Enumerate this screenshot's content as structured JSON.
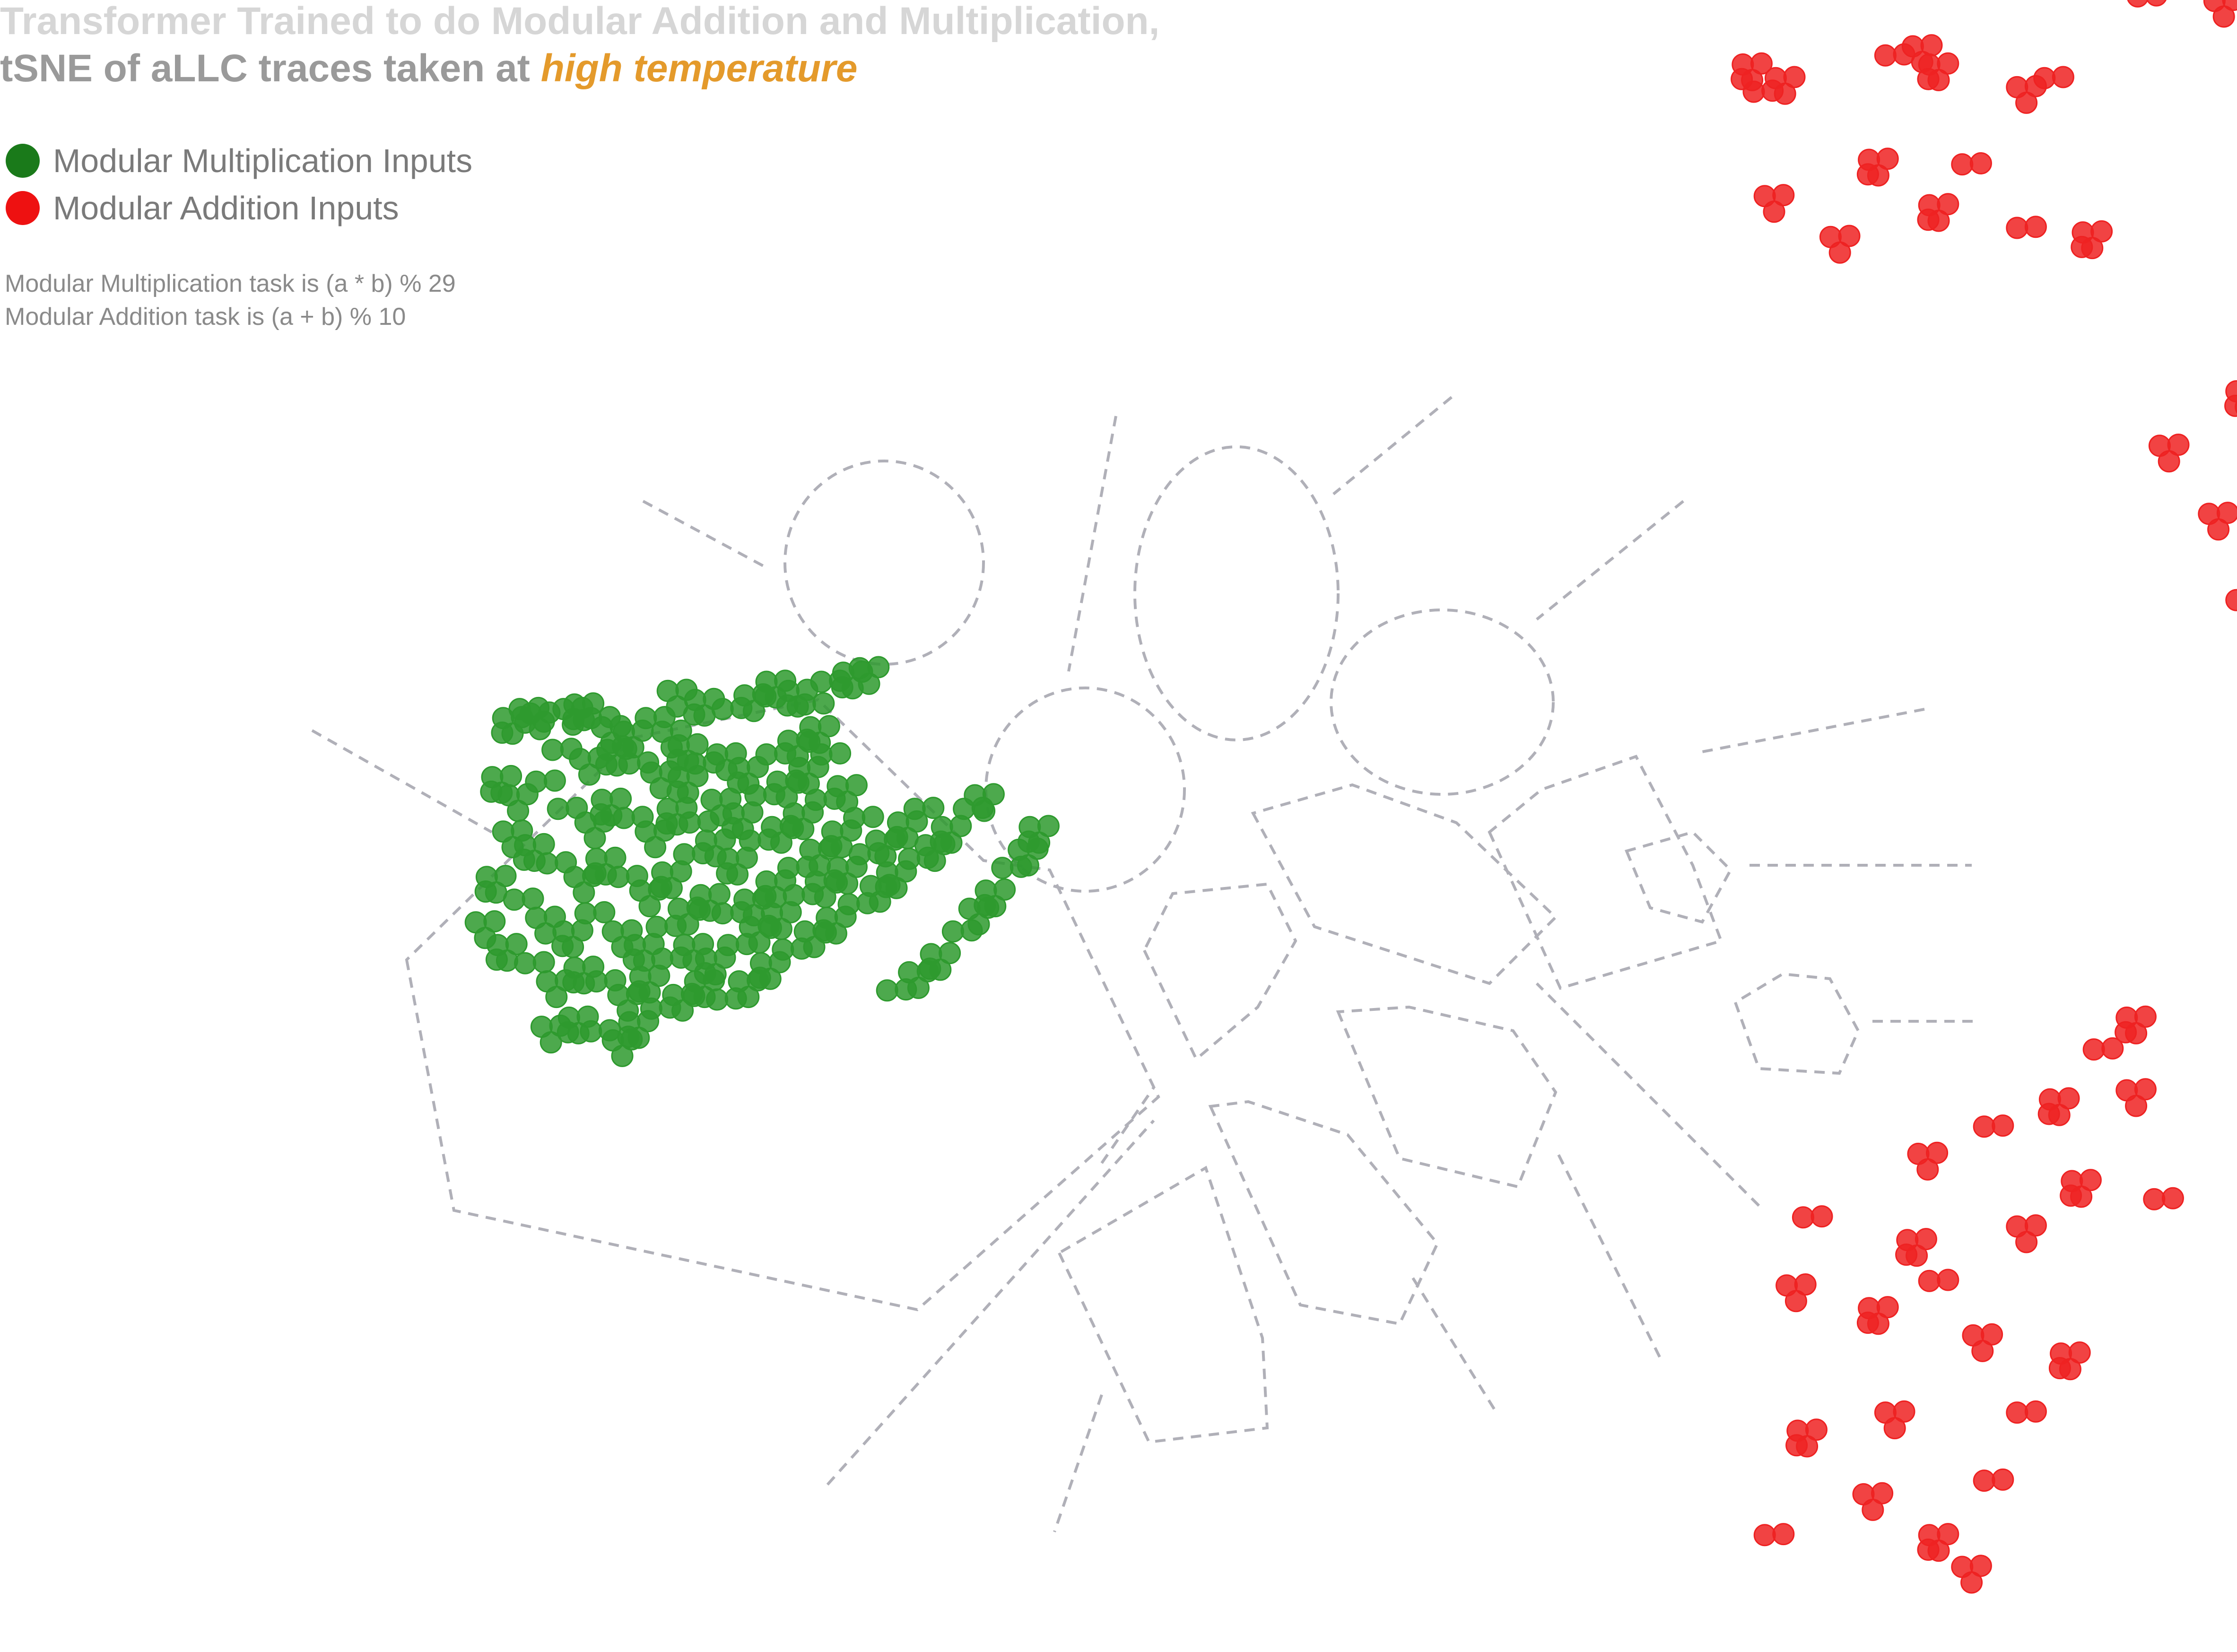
{
  "title": {
    "line1": "Transformer Trained to do Modular Addition and Multiplication,",
    "line2_prefix": "tSNE of aLLC traces taken at ",
    "line2_highlight": "high temperature"
  },
  "legend": [
    {
      "label": "Modular Multiplication Inputs",
      "color": "#1a7a1a"
    },
    {
      "label": "Modular Addition Inputs",
      "color": "#ee1111"
    }
  ],
  "notes": [
    "Modular Multiplication task is (a * b) % 29",
    "Modular Addition task is (a + b) % 10"
  ],
  "colors": {
    "multiplication": "#2e9a2e",
    "addition": "#ee2222",
    "highlight": "#e49a2b",
    "boundary": "#b0b0b8"
  },
  "chart_data": {
    "type": "scatter",
    "axes": "none",
    "grid": false,
    "legend_placement": "top-left",
    "series": [
      {
        "name": "Modular Multiplication Inputs",
        "color": "#2e9a2e",
        "points": [
          [
            43,
            82
          ],
          [
            45,
            81
          ],
          [
            40,
            80
          ],
          [
            44,
            79
          ],
          [
            51,
            82
          ],
          [
            53,
            83
          ],
          [
            56,
            80
          ],
          [
            58,
            78
          ],
          [
            62,
            77
          ],
          [
            66,
            80
          ],
          [
            69,
            77
          ],
          [
            72,
            74
          ],
          [
            49,
            73
          ],
          [
            54,
            71
          ],
          [
            59,
            73
          ],
          [
            63,
            70
          ],
          [
            67,
            68
          ],
          [
            72,
            67
          ],
          [
            75,
            70
          ],
          [
            79,
            72
          ],
          [
            83,
            69
          ],
          [
            88,
            72
          ],
          [
            92,
            75
          ],
          [
            96,
            78
          ],
          [
            46,
            66
          ],
          [
            41,
            63
          ],
          [
            38,
            67
          ],
          [
            50,
            60
          ],
          [
            55,
            57
          ],
          [
            58,
            62
          ],
          [
            62,
            58
          ],
          [
            66,
            55
          ],
          [
            70,
            60
          ],
          [
            74,
            57
          ],
          [
            78,
            62
          ],
          [
            82,
            59
          ],
          [
            86,
            63
          ],
          [
            90,
            66
          ],
          [
            94,
            69
          ],
          [
            98,
            72
          ],
          [
            40,
            55
          ],
          [
            44,
            52
          ],
          [
            48,
            48
          ],
          [
            53,
            45
          ],
          [
            57,
            49
          ],
          [
            61,
            45
          ],
          [
            65,
            42
          ],
          [
            69,
            46
          ],
          [
            73,
            50
          ],
          [
            77,
            53
          ],
          [
            81,
            49
          ],
          [
            85,
            53
          ],
          [
            89,
            56
          ],
          [
            93,
            59
          ],
          [
            97,
            62
          ],
          [
            101,
            65
          ],
          [
            37,
            45
          ],
          [
            42,
            40
          ],
          [
            46,
            36
          ],
          [
            51,
            33
          ],
          [
            55,
            37
          ],
          [
            60,
            33
          ],
          [
            64,
            30
          ],
          [
            68,
            34
          ],
          [
            72,
            38
          ],
          [
            76,
            41
          ],
          [
            80,
            37
          ],
          [
            84,
            40
          ],
          [
            88,
            44
          ],
          [
            92,
            47
          ],
          [
            96,
            51
          ],
          [
            100,
            55
          ],
          [
            104,
            58
          ],
          [
            35,
            35
          ],
          [
            39,
            30
          ],
          [
            44,
            26
          ],
          [
            48,
            22
          ],
          [
            53,
            25
          ],
          [
            57,
            22
          ],
          [
            61,
            19
          ],
          [
            65,
            23
          ],
          [
            69,
            27
          ],
          [
            73,
            30
          ],
          [
            77,
            27
          ],
          [
            81,
            30
          ],
          [
            85,
            34
          ],
          [
            89,
            37
          ],
          [
            93,
            41
          ],
          [
            97,
            44
          ],
          [
            101,
            47
          ],
          [
            105,
            50
          ],
          [
            108,
            53
          ],
          [
            112,
            57
          ],
          [
            115,
            60
          ],
          [
            47,
            12
          ],
          [
            52,
            14
          ],
          [
            56,
            11
          ],
          [
            60,
            9
          ],
          [
            63,
            13
          ],
          [
            67,
            16
          ],
          [
            71,
            19
          ],
          [
            75,
            22
          ],
          [
            79,
            18
          ],
          [
            83,
            22
          ],
          [
            87,
            26
          ],
          [
            91,
            29
          ],
          [
            95,
            33
          ],
          [
            99,
            36
          ],
          [
            103,
            39
          ],
          [
            107,
            43
          ],
          [
            110,
            46
          ],
          [
            114,
            49
          ],
          [
            117,
            52
          ],
          [
            120,
            56
          ],
          [
            124,
            60
          ],
          [
            126,
            63
          ],
          [
            102,
            90
          ],
          [
            98,
            88
          ],
          [
            105,
            91
          ],
          [
            92,
            86
          ],
          [
            95,
            83
          ],
          [
            70,
            86
          ],
          [
            75,
            84
          ],
          [
            80,
            82
          ],
          [
            84,
            85
          ],
          [
            88,
            88
          ],
          [
            110,
            20
          ],
          [
            114,
            24
          ],
          [
            118,
            28
          ],
          [
            122,
            33
          ],
          [
            125,
            38
          ],
          [
            128,
            42
          ],
          [
            131,
            47
          ],
          [
            134,
            51
          ],
          [
            136,
            56
          ]
        ]
      },
      {
        "name": "Modular Addition Inputs",
        "color": "#ee2222",
        "points": [
          [
            268,
            218
          ],
          [
            272,
            221
          ],
          [
            266,
            224
          ],
          [
            292,
            226
          ],
          [
            297,
            228
          ],
          [
            300,
            224
          ],
          [
            321,
            221
          ],
          [
            316,
            219
          ],
          [
            289,
            203
          ],
          [
            306,
            202
          ],
          [
            270,
            195
          ],
          [
            300,
            193
          ],
          [
            316,
            188
          ],
          [
            282,
            186
          ],
          [
            328,
            187
          ],
          [
            315,
            244
          ],
          [
            320,
            248
          ],
          [
            325,
            245
          ],
          [
            338,
            239
          ],
          [
            352,
            238
          ],
          [
            369,
            243
          ],
          [
            354,
            260
          ],
          [
            384,
            264
          ],
          [
            363,
            272
          ],
          [
            391,
            268
          ],
          [
            349,
            283
          ],
          [
            380,
            280
          ],
          [
            354,
            294
          ],
          [
            381,
            291
          ],
          [
            356,
            152
          ],
          [
            362,
            148
          ],
          [
            342,
            140
          ],
          [
            374,
            138
          ],
          [
            387,
            147
          ],
          [
            351,
            125
          ],
          [
            370,
            126
          ],
          [
            386,
            120
          ],
          [
            400,
            125
          ],
          [
            376,
            112
          ],
          [
            356,
            106
          ],
          [
            383,
            104
          ],
          [
            386,
            94
          ],
          [
            384,
            98
          ],
          [
            394,
            130
          ],
          [
            406,
            144
          ],
          [
            420,
            152
          ],
          [
            432,
            140
          ],
          [
            445,
            152
          ],
          [
            455,
            133
          ],
          [
            424,
            116
          ],
          [
            440,
            120
          ],
          [
            462,
            117
          ],
          [
            480,
            108
          ],
          [
            442,
            107
          ],
          [
            455,
            94
          ],
          [
            471,
            99
          ],
          [
            480,
            92
          ],
          [
            489,
            99
          ],
          [
            473,
            85
          ],
          [
            490,
            86
          ],
          [
            459,
            84
          ],
          [
            500,
            72
          ],
          [
            478,
            72
          ],
          [
            462,
            68
          ],
          [
            450,
            78
          ],
          [
            432,
            80
          ],
          [
            394,
            80
          ],
          [
            409,
            75
          ],
          [
            421,
            72
          ],
          [
            408,
            62
          ],
          [
            428,
            60
          ],
          [
            439,
            68
          ],
          [
            395,
            52
          ],
          [
            410,
            50
          ],
          [
            378,
            48
          ],
          [
            372,
            34
          ],
          [
            390,
            38
          ],
          [
            400,
            29
          ],
          [
            381,
            18
          ],
          [
            402,
            24
          ],
          [
            383,
            8
          ],
          [
            393,
            10
          ],
          [
            412,
            12
          ],
          [
            336,
            14
          ],
          [
            330,
            7
          ],
          [
            336,
            -2
          ],
          [
            322,
            -4
          ],
          [
            310,
            -10
          ],
          [
            298,
            -16
          ],
          [
            326,
            -22
          ],
          [
            341,
            -26
          ],
          [
            316,
            -32
          ],
          [
            296,
            -35
          ],
          [
            277,
            -30
          ],
          [
            274,
            -45
          ],
          [
            289,
            -50
          ],
          [
            300,
            -44
          ],
          [
            308,
            -56
          ],
          [
            324,
            -60
          ],
          [
            316,
            -73
          ],
          [
            292,
            -73
          ],
          [
            276,
            -77
          ],
          [
            310,
            -88
          ],
          [
            288,
            -91
          ],
          [
            300,
            -100
          ],
          [
            270,
            -100
          ],
          [
            306,
            -107
          ]
        ]
      }
    ]
  }
}
